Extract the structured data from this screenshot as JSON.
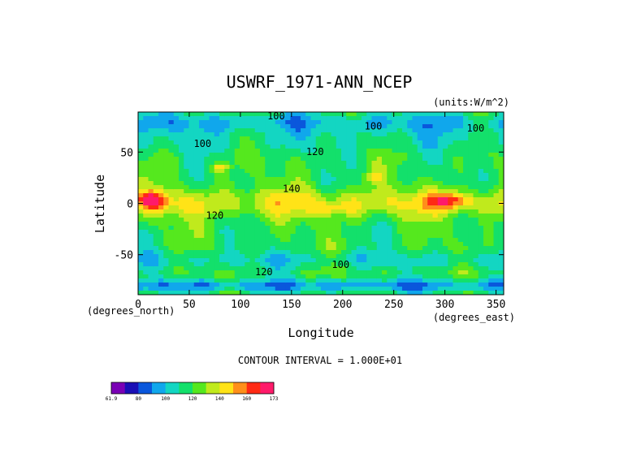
{
  "chart_data": {
    "type": "heatmap",
    "title": "USWRF_1971-ANN_NCEP",
    "units_label": "(units:W/m^2)",
    "xlabel": "Longitude",
    "ylabel": "Latitude",
    "x_units": "(degrees_east)",
    "y_units": "(degrees_north)",
    "xlim": [
      0,
      357.5
    ],
    "ylim": [
      -89,
      89
    ],
    "x_ticks": [
      "0",
      "50",
      "100",
      "150",
      "200",
      "250",
      "300",
      "350"
    ],
    "x_tick_values": [
      0,
      50,
      100,
      150,
      200,
      250,
      300,
      350
    ],
    "y_ticks": [
      "50",
      "0",
      "-50"
    ],
    "y_tick_values": [
      50,
      0,
      -50
    ],
    "contour_interval_text": "CONTOUR INTERVAL = 1.000E+01",
    "contour_labels": [
      {
        "text": "100",
        "x": 135,
        "y": 82
      },
      {
        "text": "100",
        "x": 230,
        "y": 72
      },
      {
        "text": "100",
        "x": 330,
        "y": 70
      },
      {
        "text": "100",
        "x": 63,
        "y": 55
      },
      {
        "text": "120",
        "x": 173,
        "y": 47
      },
      {
        "text": "140",
        "x": 150,
        "y": 11
      },
      {
        "text": "120",
        "x": 75,
        "y": -15
      },
      {
        "text": "100",
        "x": 198,
        "y": -63
      },
      {
        "text": "120",
        "x": 123,
        "y": -70
      }
    ],
    "colorbar": {
      "min_label": "61.9",
      "max_label": "173",
      "tick_labels": [
        "80",
        "100",
        "120",
        "140",
        "160"
      ],
      "levels": [
        61.9,
        70,
        80,
        90,
        100,
        110,
        120,
        130,
        140,
        150,
        160,
        170,
        173
      ],
      "colors": [
        "#7a00b5",
        "#1a0fb5",
        "#0a57dc",
        "#10a7ec",
        "#13d6c2",
        "#13e06b",
        "#55e81e",
        "#c0ea1c",
        "#ffe317",
        "#ff8f1a",
        "#ff2a14",
        "#ff1a6a"
      ]
    },
    "field_colors": {
      "low": "#1a0fb5",
      "mid_low": "#10a7ec",
      "mid": "#13d6c2",
      "mid_high": "#13e06b",
      "high": "#55e81e",
      "higher": "#ffe317",
      "peak": "#ff2a14"
    }
  }
}
